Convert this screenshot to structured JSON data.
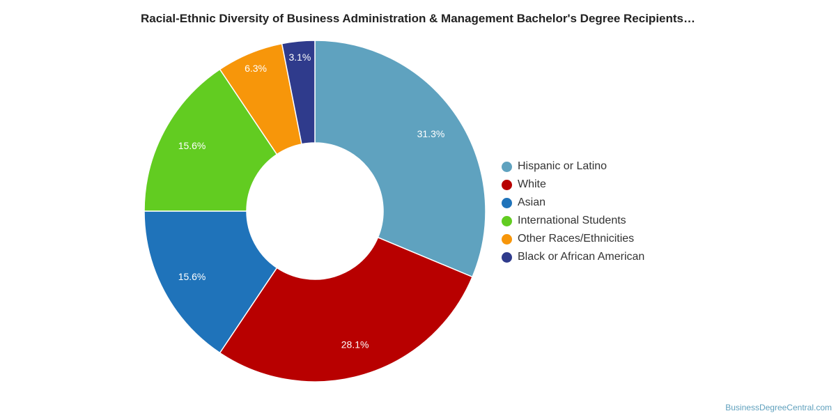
{
  "chart_data": {
    "type": "pie",
    "title": "Racial-Ethnic Diversity of Business Administration & Management Bachelor's Degree Recipients…",
    "categories": [
      "Hispanic or Latino",
      "White",
      "Asian",
      "International Students",
      "Other Races/Ethnicities",
      "Black or African American"
    ],
    "values": [
      31.3,
      28.1,
      15.6,
      15.6,
      6.3,
      3.1
    ],
    "labels": [
      "31.3%",
      "28.1%",
      "15.6%",
      "15.6%",
      "6.3%",
      "3.1%"
    ],
    "colors": [
      "#5fa2bf",
      "#b80000",
      "#1f73ba",
      "#62cc21",
      "#f7960a",
      "#2f3b8c"
    ],
    "donut": true,
    "legend_position": "right"
  },
  "credit": "BusinessDegreeCentral.com"
}
